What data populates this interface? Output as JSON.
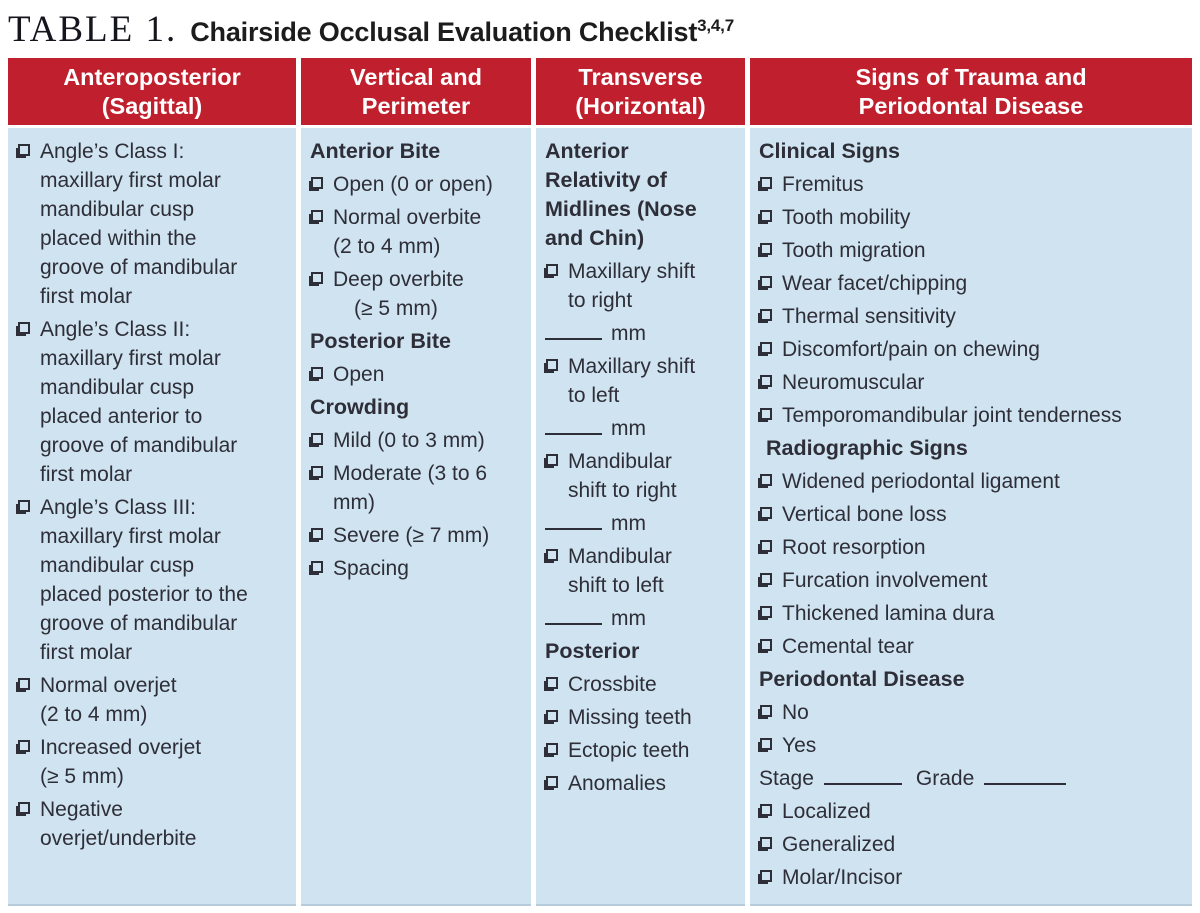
{
  "title": {
    "table_label": "TABLE 1.",
    "text": "Chairside Occlusal Evaluation Checklist",
    "citation": "3,4,7"
  },
  "colors": {
    "header_bg": "#c0202e",
    "cell_bg": "#cfe3f0",
    "text": "#2e2e38",
    "cell_border": "#b7ccda"
  },
  "columns": [
    {
      "header": "Anteroposterior\n(Sagittal)",
      "items": [
        {
          "type": "checkbox",
          "label": "Angle’s Class I:\nmaxillary first molar\nmandibular cusp\nplaced within the\ngroove of mandibular\nfirst molar"
        },
        {
          "type": "checkbox",
          "label": "Angle’s Class II:\nmaxillary first molar\nmandibular cusp\nplaced anterior to\ngroove of mandibular\nfirst molar"
        },
        {
          "type": "checkbox",
          "label": "Angle’s Class III:\nmaxillary first molar\nmandibular cusp\nplaced posterior to the\ngroove of mandibular\nfirst molar"
        },
        {
          "type": "checkbox",
          "label": "Normal overjet\n(2 to 4 mm)"
        },
        {
          "type": "checkbox",
          "label": "Increased overjet\n(≥ 5 mm)"
        },
        {
          "type": "checkbox",
          "label": "Negative\noverjet/underbite"
        }
      ]
    },
    {
      "header": "Vertical and\nPerimeter",
      "items": [
        {
          "type": "heading",
          "label": "Anterior Bite"
        },
        {
          "type": "checkbox",
          "label": "Open (0 or open)"
        },
        {
          "type": "checkbox",
          "label": "Normal overbite\n(2 to 4 mm)"
        },
        {
          "type": "checkbox",
          "label": "Deep overbite\n (≥ 5 mm)"
        },
        {
          "type": "heading",
          "label": "Posterior Bite"
        },
        {
          "type": "checkbox",
          "label": "Open"
        },
        {
          "type": "heading",
          "label": "Crowding"
        },
        {
          "type": "checkbox",
          "label": "Mild (0 to 3 mm)"
        },
        {
          "type": "checkbox",
          "label": "Moderate (3 to 6\nmm)"
        },
        {
          "type": "checkbox",
          "label": "Severe (≥ 7 mm)"
        },
        {
          "type": "checkbox",
          "label": "Spacing"
        }
      ]
    },
    {
      "header": "Transverse\n(Horizontal)",
      "items": [
        {
          "type": "heading",
          "label": "Anterior\nRelativity of\nMidlines (Nose\nand Chin)"
        },
        {
          "type": "checkbox",
          "label": "Maxillary shift\nto right"
        },
        {
          "type": "blank",
          "unit": "mm"
        },
        {
          "type": "checkbox",
          "label": "Maxillary shift\nto left"
        },
        {
          "type": "blank",
          "unit": "mm"
        },
        {
          "type": "checkbox",
          "label": "Mandibular\nshift to right"
        },
        {
          "type": "blank",
          "unit": "mm"
        },
        {
          "type": "checkbox",
          "label": "Mandibular\nshift to left"
        },
        {
          "type": "blank",
          "unit": "mm"
        },
        {
          "type": "heading",
          "label": "Posterior"
        },
        {
          "type": "checkbox",
          "label": "Crossbite"
        },
        {
          "type": "checkbox",
          "label": "Missing teeth"
        },
        {
          "type": "checkbox",
          "label": "Ectopic teeth"
        },
        {
          "type": "checkbox",
          "label": "Anomalies"
        }
      ]
    },
    {
      "header": "Signs of Trauma and\nPeriodontal Disease",
      "items": [
        {
          "type": "heading",
          "label": "Clinical Signs"
        },
        {
          "type": "checkbox",
          "label": "Fremitus"
        },
        {
          "type": "checkbox",
          "label": "Tooth mobility"
        },
        {
          "type": "checkbox",
          "label": "Tooth migration"
        },
        {
          "type": "checkbox",
          "label": "Wear facet/chipping"
        },
        {
          "type": "checkbox",
          "label": "Thermal sensitivity"
        },
        {
          "type": "checkbox",
          "label": "Discomfort/pain on chewing"
        },
        {
          "type": "checkbox",
          "label": "Neuromuscular"
        },
        {
          "type": "checkbox",
          "label": "Temporomandibular joint tenderness"
        },
        {
          "type": "heading",
          "label": "Radiographic Signs",
          "indent": true
        },
        {
          "type": "checkbox",
          "label": "Widened periodontal ligament"
        },
        {
          "type": "checkbox",
          "label": "Vertical bone loss"
        },
        {
          "type": "checkbox",
          "label": "Root resorption"
        },
        {
          "type": "checkbox",
          "label": "Furcation involvement"
        },
        {
          "type": "checkbox",
          "label": "Thickened lamina dura"
        },
        {
          "type": "checkbox",
          "label": "Cemental tear"
        },
        {
          "type": "heading",
          "label": "Periodontal Disease"
        },
        {
          "type": "checkbox",
          "label": "No"
        },
        {
          "type": "checkbox",
          "label": "Yes"
        },
        {
          "type": "stage_grade",
          "fields": [
            "Stage",
            "Grade"
          ]
        },
        {
          "type": "checkbox",
          "label": "Localized"
        },
        {
          "type": "checkbox",
          "label": "Generalized"
        },
        {
          "type": "checkbox",
          "label": "Molar/Incisor"
        }
      ]
    }
  ]
}
